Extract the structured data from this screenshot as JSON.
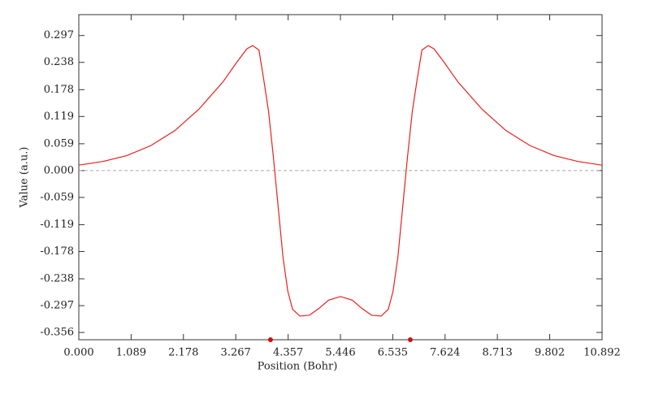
{
  "chart_data": {
    "type": "line",
    "xlabel": "Position (Bohr)",
    "ylabel": "Value (a.u.)",
    "xlim": [
      0,
      10.892
    ],
    "ylim": [
      -0.372,
      0.343
    ],
    "xticks": [
      {
        "value": 0,
        "label": "0.000"
      },
      1.089,
      2.178,
      3.267,
      4.357,
      5.446,
      6.535,
      7.624,
      8.713,
      9.802,
      10.892
    ],
    "yticks": [
      -0.356,
      -0.297,
      -0.238,
      -0.178,
      -0.119,
      -0.059,
      {
        "value": 0,
        "label": "0.000"
      },
      0.059,
      0.119,
      0.178,
      0.238,
      0.297
    ],
    "reference_line": 0,
    "x": [
      0,
      0.5,
      1.0,
      1.5,
      2.0,
      2.5,
      3.0,
      3.3,
      3.5,
      3.62,
      3.75,
      3.85,
      3.95,
      4.05,
      4.15,
      4.25,
      4.35,
      4.45,
      4.6,
      4.8,
      5.0,
      5.2,
      5.446,
      5.692,
      5.892,
      6.092,
      6.292,
      6.442,
      6.542,
      6.642,
      6.742,
      6.842,
      6.942,
      7.042,
      7.142,
      7.272,
      7.392,
      7.592,
      7.892,
      8.392,
      8.892,
      9.392,
      9.892,
      10.392,
      10.892
    ],
    "series": [
      {
        "color": "#e8201c",
        "values": [
          0.012,
          0.02,
          0.033,
          0.055,
          0.088,
          0.135,
          0.195,
          0.24,
          0.268,
          0.275,
          0.265,
          0.2,
          0.13,
          0.03,
          -0.08,
          -0.19,
          -0.265,
          -0.305,
          -0.32,
          -0.318,
          -0.303,
          -0.285,
          -0.277,
          -0.285,
          -0.303,
          -0.318,
          -0.32,
          -0.305,
          -0.265,
          -0.19,
          -0.08,
          0.03,
          0.13,
          0.2,
          0.265,
          0.275,
          0.268,
          0.24,
          0.195,
          0.135,
          0.088,
          0.055,
          0.033,
          0.02,
          0.012
        ]
      }
    ],
    "markers": {
      "color": "#cc1010",
      "x": [
        3.99,
        6.9
      ]
    }
  }
}
